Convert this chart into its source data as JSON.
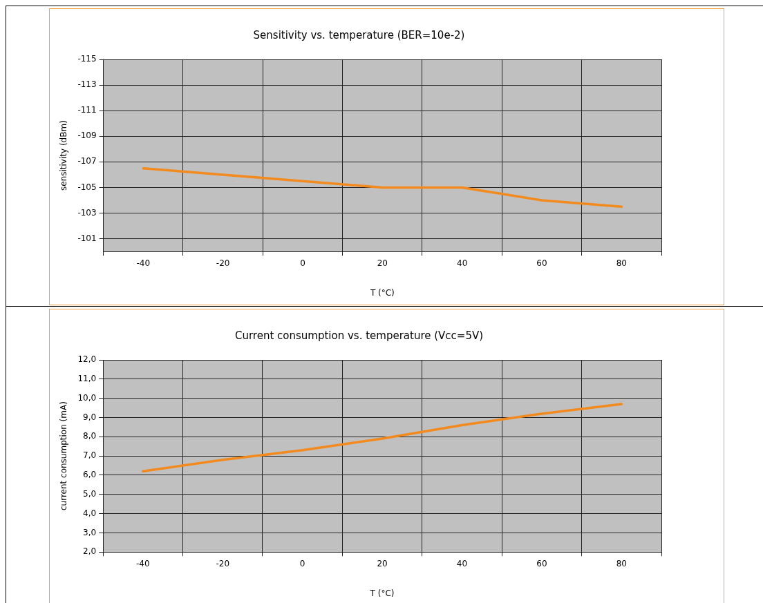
{
  "chart_data": [
    {
      "type": "line",
      "title": "Sensitivity vs. temperature (BER=10e-2)",
      "xlabel": "T (°C)",
      "ylabel": "sensitivity (dBm)",
      "categories": [
        "-40",
        "-20",
        "0",
        "20",
        "40",
        "60",
        "80"
      ],
      "series": [
        {
          "color": "#f28a1e",
          "values": [
            -106.5,
            -106,
            -105.5,
            -105,
            -105,
            -104,
            -103.5
          ]
        }
      ],
      "ylim": [
        -100,
        -115
      ],
      "yticks": [
        -115,
        -113,
        -111,
        -109,
        -107,
        -105,
        -103,
        -101
      ],
      "grid": true,
      "legend": false,
      "marker": "none",
      "line_style": "solid"
    },
    {
      "type": "line",
      "title": "Current consumption vs. temperature (Vcc=5V)",
      "xlabel": "T (°C)",
      "ylabel": "current consumption (mA)",
      "categories": [
        "-40",
        "-20",
        "0",
        "20",
        "40",
        "60",
        "80"
      ],
      "series": [
        {
          "color": "#f28a1e",
          "values": [
            6.2,
            6.8,
            7.3,
            7.9,
            8.6,
            9.2,
            9.7
          ]
        }
      ],
      "ylim": [
        2,
        12
      ],
      "yticks": [
        {
          "value": 2,
          "label": "2,0"
        },
        {
          "value": 3,
          "label": "3,0"
        },
        {
          "value": 4,
          "label": "4,0"
        },
        {
          "value": 5,
          "label": "5,0"
        },
        {
          "value": 6,
          "label": "6,0"
        },
        {
          "value": 7,
          "label": "7,0"
        },
        {
          "value": 8,
          "label": "8,0"
        },
        {
          "value": 9,
          "label": "9,0"
        },
        {
          "value": 10,
          "label": "10,0"
        },
        {
          "value": 11,
          "label": "11,0"
        },
        {
          "value": 12,
          "label": "12,0"
        }
      ],
      "grid": true,
      "legend": false,
      "marker": "none",
      "line_style": "solid"
    }
  ]
}
